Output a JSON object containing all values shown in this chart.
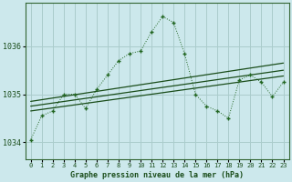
{
  "bg_color": "#cce8ec",
  "grid_color": "#aacccc",
  "line_color_dotted": "#226622",
  "line_color_smooth": "#1a4d1a",
  "xlabel": "Graphe pression niveau de la mer (hPa)",
  "xlim": [
    -0.5,
    23.5
  ],
  "ylim": [
    1033.65,
    1036.9
  ],
  "yticks": [
    1034,
    1035,
    1036
  ],
  "xticks": [
    0,
    1,
    2,
    3,
    4,
    5,
    6,
    7,
    8,
    9,
    10,
    11,
    12,
    13,
    14,
    15,
    16,
    17,
    18,
    19,
    20,
    21,
    22,
    23
  ],
  "main_x": [
    0,
    1,
    2,
    3,
    4,
    5,
    6,
    7,
    8,
    9,
    10,
    11,
    12,
    13,
    14,
    15,
    16,
    17,
    18,
    19,
    20,
    21,
    22,
    23
  ],
  "main_y": [
    1034.05,
    1034.55,
    1034.65,
    1035.0,
    1035.0,
    1034.7,
    1035.1,
    1035.4,
    1035.7,
    1035.85,
    1035.9,
    1036.3,
    1036.62,
    1036.5,
    1035.85,
    1035.0,
    1034.75,
    1034.65,
    1034.5,
    1035.3,
    1035.4,
    1035.25,
    1034.95,
    1035.25
  ],
  "smooth_lines": [
    {
      "x": [
        0,
        23
      ],
      "y": [
        1034.85,
        1035.65
      ]
    },
    {
      "x": [
        0,
        23
      ],
      "y": [
        1034.75,
        1035.5
      ]
    },
    {
      "x": [
        0,
        23
      ],
      "y": [
        1034.65,
        1035.38
      ]
    }
  ]
}
